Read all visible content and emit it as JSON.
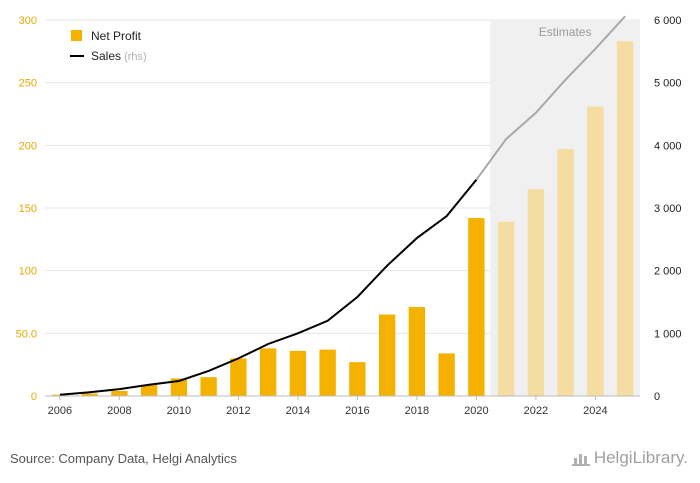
{
  "chart_data": {
    "type": "bar",
    "categories": [
      "2006",
      "2007",
      "2008",
      "2009",
      "2010",
      "2011",
      "2012",
      "2013",
      "2014",
      "2015",
      "2016",
      "2017",
      "2018",
      "2019",
      "2020",
      "2021",
      "2022",
      "2023",
      "2024",
      "2025"
    ],
    "x_tick_labels": [
      "2006",
      "2008",
      "2010",
      "2012",
      "2014",
      "2016",
      "2018",
      "2020",
      "2022",
      "2024"
    ],
    "series": [
      {
        "name": "Net Profit",
        "type": "bar",
        "axis": "left",
        "color": "#f5b100",
        "estimate_color": "#f5dca0",
        "values": [
          1,
          2,
          4,
          9,
          14,
          15,
          30,
          38,
          36,
          37,
          27,
          65,
          71,
          34,
          142,
          139,
          165,
          197,
          231,
          283
        ]
      },
      {
        "name": "Sales",
        "type": "line",
        "axis": "right",
        "color": "#000000",
        "estimate_color": "#a8a8a8",
        "values": [
          20,
          60,
          110,
          180,
          240,
          400,
          600,
          830,
          1000,
          1200,
          1580,
          2080,
          2520,
          2870,
          3450,
          4100,
          4520,
          5050,
          5540,
          6060
        ]
      }
    ],
    "legend": {
      "position": "top-left",
      "items": [
        {
          "label": "Net Profit",
          "suffix": "",
          "color": "#f5b100",
          "kind": "bar"
        },
        {
          "label": "Sales",
          "suffix": "(rhs)",
          "color": "#000000",
          "kind": "line"
        }
      ]
    },
    "left_axis": {
      "ylim": [
        0,
        300
      ],
      "ticks": [
        "0",
        "50.0",
        "100",
        "150",
        "200",
        "250",
        "300"
      ],
      "tick_values": [
        0,
        50,
        100,
        150,
        200,
        250,
        300
      ],
      "color": "#e5a800"
    },
    "right_axis": {
      "ylim": [
        0,
        6000
      ],
      "ticks": [
        "0",
        "1 000",
        "2 000",
        "3 000",
        "4 000",
        "5 000",
        "6 000"
      ],
      "tick_values": [
        0,
        1000,
        2000,
        3000,
        4000,
        5000,
        6000
      ],
      "color": "#222222"
    },
    "estimates": {
      "label": "Estimates",
      "from": "2021",
      "to": "2025"
    },
    "grid": true
  },
  "footer": {
    "source": "Source: Company Data, Helgi Analytics",
    "logo": "HelgiLibrary."
  }
}
